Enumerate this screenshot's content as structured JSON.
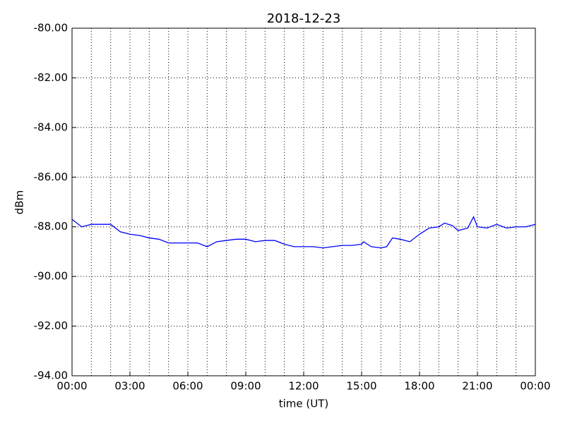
{
  "chart_data": {
    "type": "line",
    "title": "2018-12-23",
    "xlabel": "time (UT)",
    "ylabel": "dBm",
    "x": [
      0,
      0.5,
      1,
      1.5,
      2,
      2.5,
      3,
      3.5,
      4,
      4.5,
      5,
      5.5,
      6,
      6.5,
      7,
      7.5,
      8,
      8.5,
      9,
      9.5,
      10,
      10.5,
      11,
      11.5,
      12,
      12.5,
      13,
      13.5,
      14,
      14.5,
      15,
      15.1,
      15.5,
      16,
      16.3,
      16.6,
      17,
      17.5,
      18,
      18.5,
      19,
      19.3,
      19.7,
      20,
      20.5,
      20.8,
      21,
      21.5,
      22,
      22.5,
      23,
      23.5,
      24
    ],
    "series": [
      {
        "name": "dBm",
        "color": "#0000ff",
        "values": [
          -87.7,
          -88.0,
          -87.9,
          -87.9,
          -87.9,
          -88.2,
          -88.3,
          -88.35,
          -88.45,
          -88.5,
          -88.65,
          -88.65,
          -88.65,
          -88.65,
          -88.8,
          -88.6,
          -88.55,
          -88.5,
          -88.5,
          -88.6,
          -88.55,
          -88.55,
          -88.7,
          -88.8,
          -88.8,
          -88.8,
          -88.85,
          -88.8,
          -88.75,
          -88.75,
          -88.7,
          -88.6,
          -88.8,
          -88.85,
          -88.8,
          -88.45,
          -88.5,
          -88.6,
          -88.3,
          -88.05,
          -88.0,
          -87.85,
          -87.95,
          -88.15,
          -88.05,
          -87.6,
          -88.0,
          -88.05,
          -87.9,
          -88.05,
          -88.0,
          -88.0,
          -87.9
        ]
      }
    ],
    "xlim": [
      0,
      24
    ],
    "xticks": [
      {
        "value": 0,
        "label": "00:00"
      },
      {
        "value": 3,
        "label": "03:00"
      },
      {
        "value": 6,
        "label": "06:00"
      },
      {
        "value": 9,
        "label": "09:00"
      },
      {
        "value": 12,
        "label": "12:00"
      },
      {
        "value": 15,
        "label": "15:00"
      },
      {
        "value": 18,
        "label": "18:00"
      },
      {
        "value": 21,
        "label": "21:00"
      },
      {
        "value": 24,
        "label": "00:00"
      }
    ],
    "xminorticks": [
      1,
      2,
      4,
      5,
      7,
      8,
      10,
      11,
      13,
      14,
      16,
      17,
      19,
      20,
      22,
      23
    ],
    "ylim": [
      -94,
      -80
    ],
    "yticks": [
      {
        "value": -94,
        "label": "-94.00"
      },
      {
        "value": -92,
        "label": "-92.00"
      },
      {
        "value": -90,
        "label": "-90.00"
      },
      {
        "value": -88,
        "label": "-88.00"
      },
      {
        "value": -86,
        "label": "-86.00"
      },
      {
        "value": -84,
        "label": "-84.00"
      },
      {
        "value": -82,
        "label": "-82.00"
      },
      {
        "value": -80,
        "label": "-80.00"
      }
    ],
    "grid": true
  }
}
